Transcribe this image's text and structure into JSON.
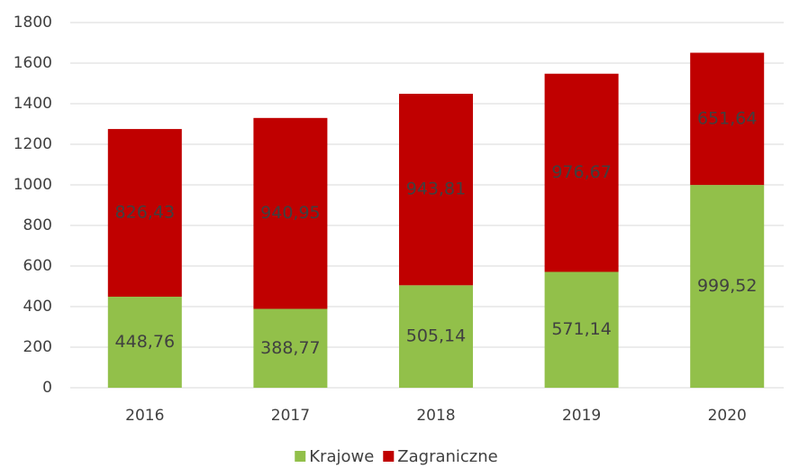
{
  "chart_data": {
    "type": "bar",
    "stacked": true,
    "categories": [
      "2016",
      "2017",
      "2018",
      "2019",
      "2020"
    ],
    "series": [
      {
        "name": "Krajowe",
        "color": "#92c04a",
        "values": [
          448.76,
          388.77,
          505.14,
          571.14,
          999.52
        ],
        "value_labels": [
          "448,76",
          "388,77",
          "505,14",
          "571,14",
          "999,52"
        ]
      },
      {
        "name": "Zagraniczne",
        "color": "#c00000",
        "values": [
          826.43,
          940.95,
          943.81,
          976.67,
          651.64
        ],
        "value_labels": [
          "826,43",
          "940,95",
          "943,81",
          "976,67",
          "651,64"
        ]
      }
    ],
    "ylim": [
      0,
      1800
    ],
    "yticks": [
      0,
      200,
      400,
      600,
      800,
      1000,
      1200,
      1400,
      1600,
      1800
    ],
    "grid": true,
    "legend": "bottom"
  }
}
